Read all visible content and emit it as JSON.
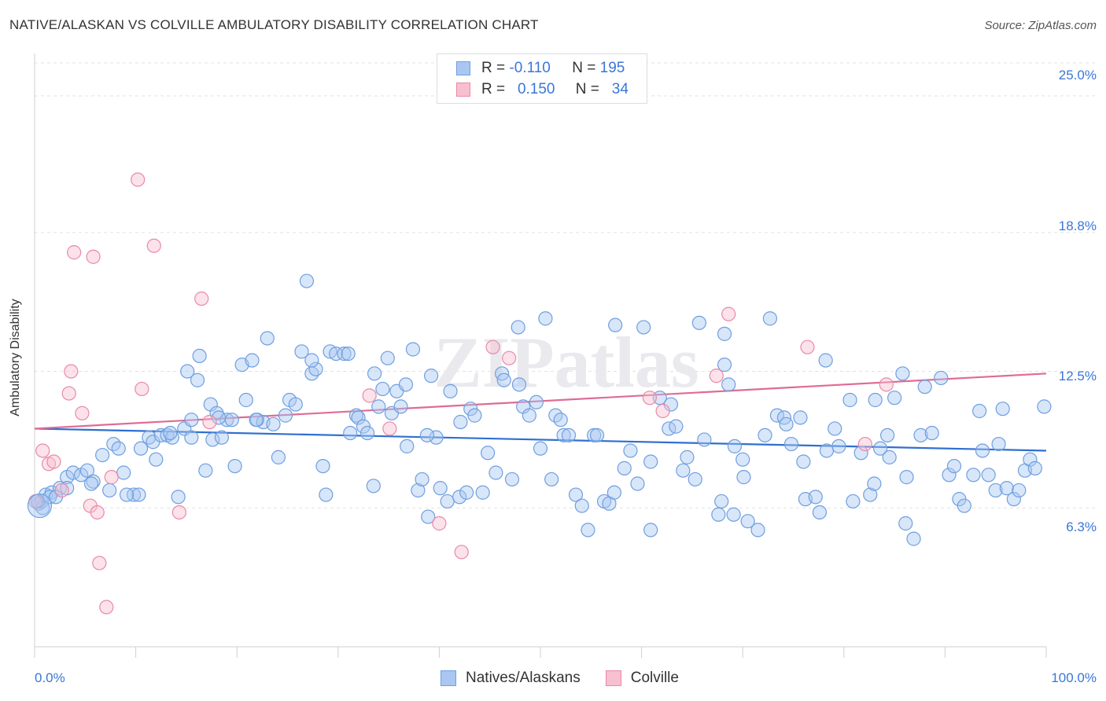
{
  "title": "NATIVE/ALASKAN VS COLVILLE AMBULATORY DISABILITY CORRELATION CHART",
  "source": "Source: ZipAtlas.com",
  "watermark": "ZIPatlas",
  "legend": {
    "rows": [
      {
        "r_label": "R =",
        "r_value": "-0.110",
        "n_label": "N =",
        "n_value": "195",
        "color": "#a9c7f2",
        "border": "#6f9fdf"
      },
      {
        "r_label": "R =",
        "r_value": "0.150",
        "n_label": "N =",
        "n_value": "34",
        "color": "#f8bfd0",
        "border": "#e88aa6"
      }
    ]
  },
  "bottom_legend": [
    {
      "label": "Natives/Alaskans",
      "color": "#a9c7f2",
      "border": "#6f9fdf"
    },
    {
      "label": "Colville",
      "color": "#f8bfd0",
      "border": "#e88aa6"
    }
  ],
  "chart_data": {
    "type": "scatter",
    "title": "NATIVE/ALASKAN VS COLVILLE AMBULATORY DISABILITY CORRELATION CHART",
    "xlabel": "",
    "ylabel": "Ambulatory Disability",
    "xlim": [
      0,
      100
    ],
    "ylim": [
      0,
      26.5
    ],
    "x_tick_labels": [
      "0.0%",
      "100.0%"
    ],
    "y_ticks": [
      6.3,
      12.5,
      18.8,
      25.0
    ],
    "y_tick_labels": [
      "6.3%",
      "12.5%",
      "18.8%",
      "25.0%"
    ],
    "grid": true,
    "series": [
      {
        "name": "Natives/Alaskans",
        "color": "#6f9fdf",
        "fill": "#a9c7f2",
        "trend": {
          "x": [
            0,
            100
          ],
          "y": [
            9.9,
            8.9
          ]
        },
        "points": [
          [
            0.4,
            6.5
          ],
          [
            0.7,
            6.6
          ],
          [
            1.1,
            6.9
          ],
          [
            1.7,
            7.0
          ],
          [
            2.5,
            7.2
          ],
          [
            3.2,
            7.7
          ],
          [
            3.8,
            7.9
          ],
          [
            4.6,
            7.8
          ],
          [
            5.2,
            8.0
          ],
          [
            5.8,
            7.5
          ],
          [
            6.7,
            8.7
          ],
          [
            7.4,
            7.1
          ],
          [
            7.8,
            9.2
          ],
          [
            8.3,
            9.0
          ],
          [
            8.8,
            7.9
          ],
          [
            9.8,
            6.9
          ],
          [
            10.3,
            6.9
          ],
          [
            10.5,
            9.0
          ],
          [
            11.3,
            9.5
          ],
          [
            11.7,
            9.3
          ],
          [
            12.0,
            8.5
          ],
          [
            12.5,
            9.6
          ],
          [
            13.1,
            9.6
          ],
          [
            13.6,
            9.5
          ],
          [
            14.2,
            6.8
          ],
          [
            14.8,
            9.9
          ],
          [
            15.1,
            12.5
          ],
          [
            15.5,
            10.3
          ],
          [
            16.1,
            12.1
          ],
          [
            16.3,
            13.2
          ],
          [
            16.9,
            8.0
          ],
          [
            17.4,
            11.0
          ],
          [
            17.6,
            9.4
          ],
          [
            18.0,
            10.6
          ],
          [
            18.5,
            9.5
          ],
          [
            19.0,
            10.3
          ],
          [
            19.5,
            10.3
          ],
          [
            19.8,
            8.2
          ],
          [
            20.5,
            12.8
          ],
          [
            20.9,
            11.2
          ],
          [
            21.5,
            13.0
          ],
          [
            22.0,
            10.3
          ],
          [
            22.6,
            10.2
          ],
          [
            23.0,
            14.0
          ],
          [
            23.6,
            10.1
          ],
          [
            24.1,
            8.6
          ],
          [
            24.8,
            10.5
          ],
          [
            25.2,
            11.2
          ],
          [
            25.8,
            11.0
          ],
          [
            26.4,
            13.4
          ],
          [
            26.9,
            16.6
          ],
          [
            27.4,
            12.4
          ],
          [
            27.8,
            12.6
          ],
          [
            28.5,
            8.2
          ],
          [
            28.8,
            6.9
          ],
          [
            29.2,
            13.4
          ],
          [
            29.8,
            13.3
          ],
          [
            30.6,
            13.3
          ],
          [
            31.2,
            9.7
          ],
          [
            31.8,
            10.5
          ],
          [
            32.0,
            10.4
          ],
          [
            32.5,
            10.0
          ],
          [
            32.9,
            9.7
          ],
          [
            33.5,
            7.3
          ],
          [
            34.0,
            10.9
          ],
          [
            34.4,
            11.7
          ],
          [
            34.9,
            13.1
          ],
          [
            35.3,
            10.6
          ],
          [
            35.8,
            11.6
          ],
          [
            36.2,
            10.9
          ],
          [
            36.7,
            11.9
          ],
          [
            36.8,
            9.1
          ],
          [
            37.4,
            13.5
          ],
          [
            37.9,
            7.1
          ],
          [
            38.3,
            7.6
          ],
          [
            38.9,
            5.9
          ],
          [
            39.2,
            12.3
          ],
          [
            39.7,
            9.5
          ],
          [
            40.1,
            7.2
          ],
          [
            40.8,
            6.6
          ],
          [
            41.1,
            11.6
          ],
          [
            42.0,
            6.8
          ],
          [
            42.7,
            7.0
          ],
          [
            43.1,
            10.8
          ],
          [
            43.5,
            10.5
          ],
          [
            44.3,
            7.0
          ],
          [
            44.8,
            8.8
          ],
          [
            45.6,
            7.9
          ],
          [
            46.2,
            12.4
          ],
          [
            46.4,
            12.1
          ],
          [
            47.2,
            7.6
          ],
          [
            47.8,
            14.5
          ],
          [
            48.3,
            10.9
          ],
          [
            48.9,
            10.5
          ],
          [
            49.6,
            11.1
          ],
          [
            50.0,
            9.0
          ],
          [
            50.5,
            14.9
          ],
          [
            51.1,
            7.6
          ],
          [
            51.5,
            10.5
          ],
          [
            52.0,
            10.3
          ],
          [
            52.3,
            9.6
          ],
          [
            52.8,
            9.6
          ],
          [
            53.5,
            6.9
          ],
          [
            54.1,
            6.4
          ],
          [
            54.7,
            5.3
          ],
          [
            55.3,
            9.6
          ],
          [
            56.3,
            6.6
          ],
          [
            56.8,
            6.5
          ],
          [
            57.3,
            7.0
          ],
          [
            57.4,
            14.6
          ],
          [
            58.3,
            8.1
          ],
          [
            58.9,
            8.9
          ],
          [
            59.6,
            7.4
          ],
          [
            60.2,
            14.5
          ],
          [
            60.9,
            8.4
          ],
          [
            61.8,
            11.3
          ],
          [
            62.7,
            9.9
          ],
          [
            62.9,
            11.0
          ],
          [
            63.4,
            10.0
          ],
          [
            64.5,
            8.6
          ],
          [
            65.3,
            7.6
          ],
          [
            65.7,
            14.7
          ],
          [
            66.2,
            9.4
          ],
          [
            67.6,
            6.0
          ],
          [
            67.9,
            6.6
          ],
          [
            68.2,
            14.2
          ],
          [
            68.6,
            11.9
          ],
          [
            69.1,
            6.0
          ],
          [
            69.2,
            9.1
          ],
          [
            70.0,
            8.5
          ],
          [
            70.1,
            7.7
          ],
          [
            70.5,
            5.7
          ],
          [
            71.5,
            5.3
          ],
          [
            72.2,
            9.6
          ],
          [
            72.7,
            14.9
          ],
          [
            73.4,
            10.5
          ],
          [
            74.1,
            10.4
          ],
          [
            74.8,
            9.2
          ],
          [
            75.7,
            10.4
          ],
          [
            76.0,
            8.4
          ],
          [
            76.2,
            6.7
          ],
          [
            77.2,
            6.8
          ],
          [
            77.6,
            6.1
          ],
          [
            78.3,
            8.9
          ],
          [
            79.1,
            9.9
          ],
          [
            79.5,
            9.1
          ],
          [
            80.6,
            11.2
          ],
          [
            80.9,
            6.6
          ],
          [
            81.7,
            8.8
          ],
          [
            82.6,
            6.9
          ],
          [
            83.0,
            7.4
          ],
          [
            83.6,
            9.0
          ],
          [
            84.3,
            9.6
          ],
          [
            84.5,
            8.6
          ],
          [
            85.0,
            11.3
          ],
          [
            85.8,
            12.4
          ],
          [
            86.1,
            5.6
          ],
          [
            86.9,
            4.9
          ],
          [
            87.6,
            9.6
          ],
          [
            88.0,
            11.8
          ],
          [
            88.7,
            9.7
          ],
          [
            89.6,
            12.2
          ],
          [
            90.4,
            7.8
          ],
          [
            90.9,
            8.2
          ],
          [
            91.4,
            6.7
          ],
          [
            91.9,
            6.4
          ],
          [
            92.8,
            7.8
          ],
          [
            93.4,
            10.7
          ],
          [
            93.7,
            8.9
          ],
          [
            94.3,
            7.8
          ],
          [
            95.0,
            7.1
          ],
          [
            95.7,
            10.8
          ],
          [
            96.1,
            7.2
          ],
          [
            96.8,
            6.7
          ],
          [
            97.3,
            7.1
          ],
          [
            97.9,
            8.0
          ],
          [
            98.4,
            8.5
          ],
          [
            98.9,
            8.1
          ],
          [
            99.8,
            10.9
          ],
          [
            95.3,
            9.2
          ],
          [
            86.2,
            7.7
          ],
          [
            83.1,
            11.2
          ],
          [
            78.2,
            13.0
          ],
          [
            74.3,
            10.1
          ],
          [
            68.2,
            12.8
          ],
          [
            64.1,
            8.0
          ],
          [
            60.9,
            5.3
          ],
          [
            55.6,
            9.6
          ],
          [
            47.9,
            11.9
          ],
          [
            42.1,
            10.2
          ],
          [
            38.8,
            9.6
          ],
          [
            33.6,
            12.4
          ],
          [
            31.0,
            13.3
          ],
          [
            27.4,
            13.0
          ],
          [
            21.9,
            10.3
          ],
          [
            18.2,
            10.4
          ],
          [
            15.5,
            9.5
          ],
          [
            13.4,
            9.7
          ],
          [
            9.1,
            6.9
          ],
          [
            5.6,
            7.4
          ],
          [
            3.2,
            7.2
          ],
          [
            1.5,
            6.8
          ],
          [
            0.8,
            6.3
          ],
          [
            0.3,
            6.6
          ],
          [
            2.1,
            6.8
          ]
        ]
      },
      {
        "name": "Colville",
        "color": "#e88aa6",
        "fill": "#f8bfd0",
        "trend": {
          "x": [
            0,
            100
          ],
          "y": [
            9.9,
            12.4
          ]
        },
        "points": [
          [
            0.8,
            8.9
          ],
          [
            1.4,
            8.3
          ],
          [
            1.9,
            8.4
          ],
          [
            2.7,
            7.1
          ],
          [
            3.4,
            11.5
          ],
          [
            3.6,
            12.5
          ],
          [
            3.9,
            17.9
          ],
          [
            4.7,
            10.6
          ],
          [
            5.5,
            6.4
          ],
          [
            5.8,
            17.7
          ],
          [
            6.2,
            6.1
          ],
          [
            6.4,
            3.8
          ],
          [
            7.1,
            1.8
          ],
          [
            7.6,
            7.7
          ],
          [
            10.2,
            21.2
          ],
          [
            10.6,
            11.7
          ],
          [
            11.8,
            18.2
          ],
          [
            14.3,
            6.1
          ],
          [
            16.5,
            15.8
          ],
          [
            17.3,
            10.2
          ],
          [
            33.1,
            11.4
          ],
          [
            35.1,
            9.9
          ],
          [
            40.0,
            5.6
          ],
          [
            42.2,
            4.3
          ],
          [
            45.3,
            13.6
          ],
          [
            46.9,
            13.1
          ],
          [
            60.8,
            11.3
          ],
          [
            62.1,
            10.7
          ],
          [
            67.4,
            12.3
          ],
          [
            68.6,
            15.1
          ],
          [
            76.4,
            13.6
          ],
          [
            82.1,
            9.2
          ],
          [
            84.2,
            11.9
          ],
          [
            0.1,
            6.6
          ]
        ]
      }
    ]
  }
}
